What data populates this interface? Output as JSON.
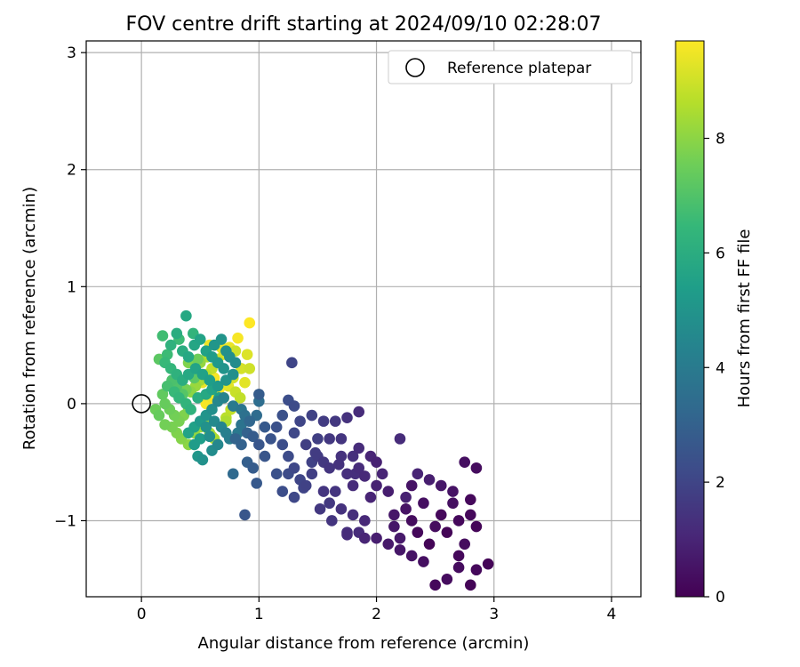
{
  "chart_data": {
    "type": "scatter",
    "title": "FOV centre drift starting at 2024/09/10 02:28:07",
    "xlabel": "Angular distance from reference (arcmin)",
    "ylabel": "Rotation from reference (arcmin)",
    "xlim": [
      -0.47,
      4.25
    ],
    "ylim": [
      -1.65,
      3.1
    ],
    "xticks": [
      0,
      1,
      2,
      3,
      4
    ],
    "xtick_labels": [
      "0",
      "1",
      "2",
      "3",
      "4"
    ],
    "yticks": [
      -1,
      0,
      1,
      2,
      3
    ],
    "ytick_labels": [
      "−1",
      "0",
      "1",
      "2",
      "3"
    ],
    "grid": true,
    "legend": {
      "position": "top-right",
      "entries": [
        "Reference platepar"
      ]
    },
    "reference_point": {
      "x": 0,
      "y": 0,
      "label": "Reference platepar"
    },
    "colorbar": {
      "label": "Hours from first FF file",
      "min": 0,
      "max": 9.7,
      "ticks": [
        0,
        2,
        4,
        6,
        8
      ],
      "tick_labels": [
        "0",
        "2",
        "4",
        "6",
        "8"
      ],
      "colormap": "viridis"
    },
    "colormap_stops": [
      "#440154",
      "#482878",
      "#3e4a89",
      "#31688e",
      "#26828e",
      "#1f9e89",
      "#35b779",
      "#6ece58",
      "#b5de2b",
      "#fde725"
    ],
    "points": [
      [
        2.3,
        -1.0,
        0.3
      ],
      [
        2.25,
        -0.9,
        0.5
      ],
      [
        2.35,
        -1.1,
        0.2
      ],
      [
        2.15,
        -0.95,
        0.6
      ],
      [
        2.4,
        -0.85,
        0.4
      ],
      [
        2.2,
        -1.15,
        0.7
      ],
      [
        2.45,
        -1.2,
        0.1
      ],
      [
        2.1,
        -0.75,
        0.8
      ],
      [
        2.3,
        -0.7,
        0.5
      ],
      [
        2.5,
        -1.05,
        0.3
      ],
      [
        2.55,
        -0.95,
        0.2
      ],
      [
        2.6,
        -1.1,
        0.1
      ],
      [
        2.7,
        -1.0,
        0.2
      ],
      [
        2.65,
        -0.85,
        0.4
      ],
      [
        2.75,
        -1.2,
        0.3
      ],
      [
        2.8,
        -0.95,
        0.2
      ],
      [
        2.85,
        -1.05,
        0.1
      ],
      [
        2.7,
        -1.3,
        0.2
      ],
      [
        2.6,
        -1.5,
        0.3
      ],
      [
        2.5,
        -1.55,
        0.2
      ],
      [
        2.8,
        -1.55,
        0.1
      ],
      [
        2.95,
        -1.37,
        0.1
      ],
      [
        2.85,
        -1.42,
        0.2
      ],
      [
        2.7,
        -1.4,
        0.3
      ],
      [
        2.4,
        -1.35,
        0.4
      ],
      [
        2.3,
        -1.3,
        0.5
      ],
      [
        2.2,
        -1.25,
        0.6
      ],
      [
        2.1,
        -1.2,
        0.7
      ],
      [
        2.0,
        -1.15,
        0.8
      ],
      [
        2.15,
        -1.05,
        0.6
      ],
      [
        2.25,
        -0.8,
        0.9
      ],
      [
        2.35,
        -0.6,
        1.0
      ],
      [
        2.45,
        -0.65,
        0.8
      ],
      [
        2.55,
        -0.7,
        0.6
      ],
      [
        2.65,
        -0.75,
        0.5
      ],
      [
        2.75,
        -0.5,
        0.4
      ],
      [
        2.85,
        -0.55,
        0.3
      ],
      [
        2.8,
        -0.82,
        0.2
      ],
      [
        2.2,
        -0.3,
        1.2
      ],
      [
        2.05,
        -0.6,
        1.0
      ],
      [
        2.0,
        -0.7,
        0.9
      ],
      [
        1.95,
        -0.8,
        1.0
      ],
      [
        1.9,
        -1.0,
        1.1
      ],
      [
        1.85,
        -1.1,
        1.2
      ],
      [
        1.9,
        -1.15,
        1.0
      ],
      [
        1.75,
        -1.1,
        1.3
      ],
      [
        1.7,
        -0.9,
        1.4
      ],
      [
        1.8,
        -0.7,
        1.2
      ],
      [
        1.65,
        -0.75,
        1.5
      ],
      [
        1.6,
        -0.85,
        1.6
      ],
      [
        1.55,
        -0.75,
        1.5
      ],
      [
        1.6,
        -0.55,
        1.5
      ],
      [
        1.7,
        -0.45,
        1.4
      ],
      [
        1.8,
        -0.45,
        1.3
      ],
      [
        1.85,
        -0.55,
        1.2
      ],
      [
        1.9,
        -0.62,
        1.1
      ],
      [
        1.95,
        -0.45,
        1.0
      ],
      [
        2.0,
        -0.5,
        0.9
      ],
      [
        1.85,
        -0.38,
        1.2
      ],
      [
        1.82,
        -0.6,
        1.3
      ],
      [
        1.75,
        -0.6,
        1.3
      ],
      [
        1.68,
        -0.52,
        1.4
      ],
      [
        1.55,
        -0.5,
        1.6
      ],
      [
        1.5,
        -0.45,
        1.7
      ],
      [
        1.45,
        -0.6,
        1.8
      ],
      [
        1.4,
        -0.7,
        1.9
      ],
      [
        1.35,
        -0.65,
        2.0
      ],
      [
        1.3,
        -0.55,
        2.1
      ],
      [
        1.25,
        -0.45,
        2.2
      ],
      [
        1.2,
        -0.35,
        2.3
      ],
      [
        1.3,
        -0.25,
        2.1
      ],
      [
        1.35,
        -0.15,
        2.0
      ],
      [
        1.45,
        -0.1,
        1.9
      ],
      [
        1.55,
        -0.15,
        1.7
      ],
      [
        1.65,
        -0.15,
        1.6
      ],
      [
        1.75,
        -0.12,
        1.4
      ],
      [
        1.85,
        -0.07,
        1.2
      ],
      [
        1.4,
        -0.35,
        1.8
      ],
      [
        1.48,
        -0.42,
        1.7
      ],
      [
        1.3,
        -0.02,
        2.2
      ],
      [
        1.25,
        0.03,
        2.3
      ],
      [
        1.28,
        0.35,
        2.0
      ],
      [
        1.2,
        -0.1,
        2.4
      ],
      [
        1.15,
        -0.2,
        2.4
      ],
      [
        1.1,
        -0.3,
        2.5
      ],
      [
        1.0,
        -0.35,
        2.6
      ],
      [
        1.05,
        -0.45,
        2.6
      ],
      [
        1.15,
        -0.6,
        2.4
      ],
      [
        1.2,
        -0.75,
        2.3
      ],
      [
        1.25,
        -0.6,
        2.2
      ],
      [
        1.3,
        -0.8,
        2.1
      ],
      [
        1.38,
        -0.72,
        2.0
      ],
      [
        1.45,
        -0.5,
        1.9
      ],
      [
        1.5,
        -0.3,
        1.8
      ],
      [
        1.6,
        -0.3,
        1.6
      ],
      [
        1.7,
        -0.3,
        1.5
      ],
      [
        1.52,
        -0.9,
        1.6
      ],
      [
        1.62,
        -1.0,
        1.5
      ],
      [
        1.8,
        -0.95,
        1.3
      ],
      [
        1.75,
        -1.12,
        1.2
      ],
      [
        1.05,
        -0.2,
        2.7
      ],
      [
        0.95,
        -0.28,
        2.8
      ],
      [
        1.0,
        0.08,
        2.8
      ],
      [
        0.98,
        -0.68,
        2.7
      ],
      [
        0.88,
        -0.95,
        2.6
      ],
      [
        0.9,
        -0.5,
        2.9
      ],
      [
        0.95,
        -0.55,
        2.8
      ],
      [
        0.85,
        -0.35,
        3.0
      ],
      [
        0.8,
        -0.3,
        3.1
      ],
      [
        0.78,
        -0.6,
        3.3
      ],
      [
        0.9,
        -0.25,
        3.0
      ],
      [
        0.92,
        -0.15,
        3.2
      ],
      [
        0.98,
        -0.1,
        3.4
      ],
      [
        1.0,
        0.02,
        3.5
      ],
      [
        0.88,
        -0.1,
        3.6
      ],
      [
        0.85,
        -0.05,
        3.8
      ],
      [
        0.78,
        -0.02,
        4.0
      ],
      [
        0.7,
        0.05,
        4.3
      ],
      [
        0.65,
        0.02,
        4.5
      ],
      [
        0.6,
        -0.05,
        4.8
      ],
      [
        0.55,
        -0.1,
        5.0
      ],
      [
        0.5,
        -0.15,
        5.2
      ],
      [
        0.45,
        -0.2,
        5.5
      ],
      [
        0.4,
        -0.25,
        5.6
      ],
      [
        0.45,
        -0.35,
        5.3
      ],
      [
        0.5,
        -0.3,
        5.4
      ],
      [
        0.48,
        -0.45,
        5.1
      ],
      [
        0.52,
        -0.48,
        4.9
      ],
      [
        0.55,
        -0.2,
        4.9
      ],
      [
        0.62,
        -0.15,
        4.6
      ],
      [
        0.68,
        -0.2,
        4.4
      ],
      [
        0.72,
        -0.25,
        4.2
      ],
      [
        0.75,
        -0.3,
        4.1
      ],
      [
        0.82,
        -0.25,
        3.9
      ],
      [
        0.85,
        -0.18,
        3.7
      ],
      [
        0.6,
        -0.4,
        4.7
      ],
      [
        0.65,
        -0.35,
        4.5
      ],
      [
        0.58,
        -0.28,
        4.8
      ],
      [
        0.38,
        0.75,
        5.8
      ],
      [
        0.3,
        0.6,
        6.0
      ],
      [
        0.25,
        0.5,
        6.2
      ],
      [
        0.35,
        0.45,
        6.0
      ],
      [
        0.4,
        0.4,
        5.8
      ],
      [
        0.45,
        0.5,
        5.7
      ],
      [
        0.5,
        0.55,
        5.6
      ],
      [
        0.55,
        0.45,
        5.5
      ],
      [
        0.6,
        0.4,
        5.3
      ],
      [
        0.65,
        0.35,
        5.2
      ],
      [
        0.7,
        0.3,
        5.0
      ],
      [
        0.62,
        0.5,
        5.1
      ],
      [
        0.68,
        0.55,
        5.0
      ],
      [
        0.72,
        0.45,
        4.9
      ],
      [
        0.75,
        0.4,
        4.8
      ],
      [
        0.8,
        0.35,
        4.7
      ],
      [
        0.78,
        0.25,
        4.8
      ],
      [
        0.72,
        0.2,
        5.0
      ],
      [
        0.65,
        0.15,
        5.2
      ],
      [
        0.58,
        0.2,
        5.4
      ],
      [
        0.52,
        0.25,
        5.5
      ],
      [
        0.46,
        0.3,
        5.6
      ],
      [
        0.4,
        0.25,
        5.8
      ],
      [
        0.35,
        0.2,
        6.0
      ],
      [
        0.3,
        0.25,
        6.2
      ],
      [
        0.25,
        0.3,
        6.4
      ],
      [
        0.2,
        0.35,
        6.5
      ],
      [
        0.18,
        0.58,
        6.7
      ],
      [
        0.22,
        0.42,
        6.6
      ],
      [
        0.28,
        0.1,
        6.5
      ],
      [
        0.32,
        0.05,
        6.4
      ],
      [
        0.38,
        0.0,
        6.3
      ],
      [
        0.42,
        -0.05,
        6.2
      ],
      [
        0.48,
        0.05,
        6.0
      ],
      [
        0.55,
        0.08,
        5.8
      ],
      [
        0.6,
        0.12,
        5.6
      ],
      [
        0.66,
        0.05,
        5.4
      ],
      [
        0.22,
        0.15,
        6.8
      ],
      [
        0.26,
        0.2,
        6.9
      ],
      [
        0.3,
        0.15,
        7.0
      ],
      [
        0.35,
        0.08,
        7.1
      ],
      [
        0.15,
        0.38,
        7.2
      ],
      [
        0.18,
        0.08,
        7.3
      ],
      [
        0.2,
        0.0,
        7.4
      ],
      [
        0.24,
        -0.05,
        7.5
      ],
      [
        0.28,
        -0.1,
        7.6
      ],
      [
        0.32,
        -0.15,
        7.7
      ],
      [
        0.36,
        -0.1,
        7.8
      ],
      [
        0.4,
        -0.05,
        7.9
      ],
      [
        0.12,
        -0.05,
        7.5
      ],
      [
        0.15,
        -0.1,
        7.4
      ],
      [
        0.2,
        -0.18,
        7.6
      ],
      [
        0.26,
        -0.2,
        7.7
      ],
      [
        0.3,
        -0.25,
        7.8
      ],
      [
        0.34,
        -0.3,
        7.9
      ],
      [
        0.4,
        -0.35,
        8.0
      ],
      [
        0.45,
        -0.25,
        8.1
      ],
      [
        0.5,
        -0.2,
        8.2
      ],
      [
        0.55,
        -0.15,
        8.3
      ],
      [
        0.58,
        -0.25,
        8.4
      ],
      [
        0.62,
        -0.3,
        8.5
      ],
      [
        0.68,
        -0.2,
        8.6
      ],
      [
        0.72,
        -0.12,
        8.7
      ],
      [
        0.76,
        -0.05,
        8.8
      ],
      [
        0.42,
        0.1,
        8.0
      ],
      [
        0.46,
        0.15,
        8.2
      ],
      [
        0.5,
        0.2,
        8.4
      ],
      [
        0.55,
        0.25,
        8.6
      ],
      [
        0.6,
        0.3,
        8.8
      ],
      [
        0.65,
        0.38,
        9.0
      ],
      [
        0.7,
        0.42,
        9.2
      ],
      [
        0.75,
        0.48,
        9.4
      ],
      [
        0.8,
        0.45,
        9.0
      ],
      [
        0.85,
        0.3,
        9.1
      ],
      [
        0.88,
        0.18,
        9.3
      ],
      [
        0.92,
        0.3,
        9.0
      ],
      [
        0.9,
        0.42,
        9.2
      ],
      [
        0.82,
        0.56,
        9.6
      ],
      [
        0.92,
        0.69,
        9.7
      ],
      [
        0.68,
        0.48,
        9.4
      ],
      [
        0.58,
        0.5,
        9.5
      ],
      [
        0.6,
        0.05,
        9.5
      ],
      [
        0.55,
        0.0,
        9.6
      ],
      [
        0.52,
        0.18,
        9.4
      ],
      [
        0.62,
        0.22,
        9.6
      ],
      [
        0.66,
        0.12,
        9.7
      ],
      [
        0.7,
        0.05,
        9.5
      ],
      [
        0.74,
        0.15,
        9.3
      ],
      [
        0.78,
        0.22,
        9.1
      ],
      [
        0.8,
        0.1,
        8.9
      ],
      [
        0.84,
        0.05,
        8.8
      ],
      [
        0.72,
        -0.15,
        8.5
      ],
      [
        0.6,
        -0.28,
        8.7
      ],
      [
        0.35,
        0.45,
        7.0
      ],
      [
        0.32,
        0.55,
        6.6
      ],
      [
        0.44,
        0.6,
        6.3
      ],
      [
        0.48,
        0.38,
        7.5
      ],
      [
        0.4,
        0.35,
        7.8
      ],
      [
        0.45,
        0.22,
        7.2
      ],
      [
        0.5,
        0.35,
        8.1
      ],
      [
        0.56,
        0.4,
        8.5
      ],
      [
        0.38,
        0.12,
        7.6
      ]
    ]
  }
}
